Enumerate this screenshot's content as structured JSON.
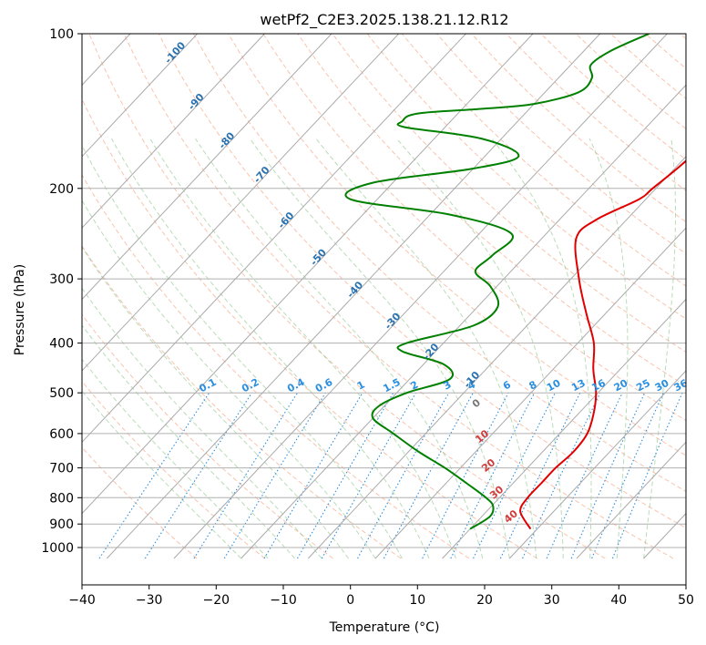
{
  "chart_data": {
    "type": "line",
    "subtype": "skew-t log-p diagram",
    "title": "wetPf2_C2E3.2025.138.21.12.R12",
    "xlabel": "Temperature (°C)",
    "ylabel": "Pressure (hPa)",
    "xlim": [
      -40,
      50
    ],
    "ylim": [
      1050,
      100
    ],
    "y_scale": "log",
    "grid": true,
    "x_ticks": [
      -40,
      -30,
      -20,
      -10,
      0,
      10,
      20,
      30,
      40,
      50
    ],
    "y_ticks": [
      100,
      200,
      300,
      400,
      500,
      600,
      700,
      800,
      900,
      1000
    ],
    "isotherm_labels": [
      -100,
      -90,
      -80,
      -70,
      -60,
      -50,
      -40,
      -30,
      -20,
      -10
    ],
    "mixing_ratio_labels": [
      "0.1",
      "0.2",
      "0.4",
      "0.6",
      "1",
      "1.5",
      "2",
      "3",
      "4",
      "6",
      "8",
      "10",
      "13",
      "16",
      "20",
      "25",
      "30",
      "36"
    ],
    "dry_adiabat_labels": [
      "0",
      "10",
      "20",
      "30",
      "40"
    ],
    "series": [
      {
        "color": "#e00000",
        "points": [
          {
            "p": 920,
            "t": 19.0
          },
          {
            "p": 850,
            "t": 15.0
          },
          {
            "p": 800,
            "t": 14.2
          },
          {
            "p": 750,
            "t": 14.2
          },
          {
            "p": 700,
            "t": 14.2
          },
          {
            "p": 650,
            "t": 14.6
          },
          {
            "p": 600,
            "t": 14.1
          },
          {
            "p": 550,
            "t": 12.3
          },
          {
            "p": 500,
            "t": 9.7
          },
          {
            "p": 450,
            "t": 6.0
          },
          {
            "p": 400,
            "t": 2.4
          },
          {
            "p": 350,
            "t": -2.9
          },
          {
            "p": 300,
            "t": -8.8
          },
          {
            "p": 250,
            "t": -14.9
          },
          {
            "p": 230,
            "t": -14.5
          },
          {
            "p": 210,
            "t": -11.0
          },
          {
            "p": 200,
            "t": -10.5
          },
          {
            "p": 180,
            "t": -9.5
          },
          {
            "p": 160,
            "t": -9.0
          },
          {
            "p": 145,
            "t": -9.5
          },
          {
            "p": 130,
            "t": -10.8
          },
          {
            "p": 120,
            "t": -9.7
          },
          {
            "p": 110,
            "t": -12.5
          },
          {
            "p": 100,
            "t": -15.4
          }
        ]
      },
      {
        "color": "#008000",
        "points": [
          {
            "p": 920,
            "t": 10.0
          },
          {
            "p": 870,
            "t": 11.2
          },
          {
            "p": 830,
            "t": 10.2
          },
          {
            "p": 800,
            "t": 8.0
          },
          {
            "p": 750,
            "t": 3.1
          },
          {
            "p": 700,
            "t": -2.3
          },
          {
            "p": 650,
            "t": -8.6
          },
          {
            "p": 600,
            "t": -14.8
          },
          {
            "p": 560,
            "t": -20.0
          },
          {
            "p": 530,
            "t": -20.8
          },
          {
            "p": 500,
            "t": -18.5
          },
          {
            "p": 470,
            "t": -14.0
          },
          {
            "p": 440,
            "t": -17.0
          },
          {
            "p": 415,
            "t": -25.0
          },
          {
            "p": 400,
            "t": -25.5
          },
          {
            "p": 370,
            "t": -18.0
          },
          {
            "p": 340,
            "t": -17.0
          },
          {
            "p": 310,
            "t": -21.0
          },
          {
            "p": 290,
            "t": -25.3
          },
          {
            "p": 270,
            "t": -25.0
          },
          {
            "p": 245,
            "t": -25.2
          },
          {
            "p": 225,
            "t": -37.0
          },
          {
            "p": 210,
            "t": -54.0
          },
          {
            "p": 195,
            "t": -53.0
          },
          {
            "p": 183,
            "t": -40.0
          },
          {
            "p": 173,
            "t": -35.0
          },
          {
            "p": 160,
            "t": -43.0
          },
          {
            "p": 152,
            "t": -56.0
          },
          {
            "p": 148,
            "t": -57.2
          },
          {
            "p": 143,
            "t": -56.0
          },
          {
            "p": 140,
            "t": -47.0
          },
          {
            "p": 137,
            "t": -40.0
          },
          {
            "p": 130,
            "t": -35.0
          },
          {
            "p": 122,
            "t": -35.0
          },
          {
            "p": 115,
            "t": -37.0
          },
          {
            "p": 108,
            "t": -36.0
          },
          {
            "p": 100,
            "t": -32.7
          }
        ]
      }
    ]
  }
}
